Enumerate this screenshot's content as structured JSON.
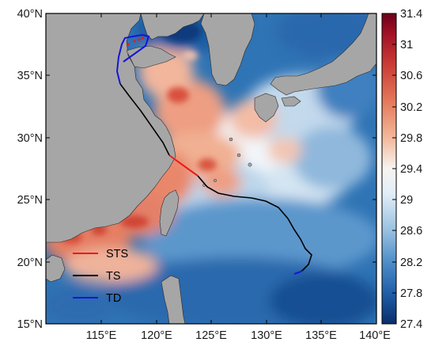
{
  "map": {
    "lon_labels": [
      "115°E",
      "120°E",
      "125°E",
      "130°E",
      "135°E",
      "140°E"
    ],
    "lat_labels": [
      "40°N",
      "35°N",
      "30°N",
      "25°N",
      "20°N",
      "15°N"
    ],
    "extent": {
      "lon": [
        110,
        140
      ],
      "lat": [
        15,
        40
      ]
    }
  },
  "colorbar": {
    "ticks": [
      "31.4",
      "31",
      "30.6",
      "30.2",
      "29.8",
      "29.4",
      "29",
      "28.6",
      "28.2",
      "27.8",
      "27.4"
    ],
    "range": [
      27.4,
      31.4
    ],
    "colors": [
      "#0b2e6b",
      "#1f5fa8",
      "#4f8ec8",
      "#98c0e0",
      "#e2eef7",
      "#f7ece6",
      "#f3b89a",
      "#e37859",
      "#c93a34",
      "#9e0f25",
      "#6b0019"
    ]
  },
  "legend": [
    {
      "label": "STS",
      "color": "#e81c1c"
    },
    {
      "label": "TS",
      "color": "#000000"
    },
    {
      "label": "TD",
      "color": "#1515d8"
    }
  ],
  "colors": {
    "land": "#a6a6a6",
    "coast": "#2b2b2b"
  }
}
